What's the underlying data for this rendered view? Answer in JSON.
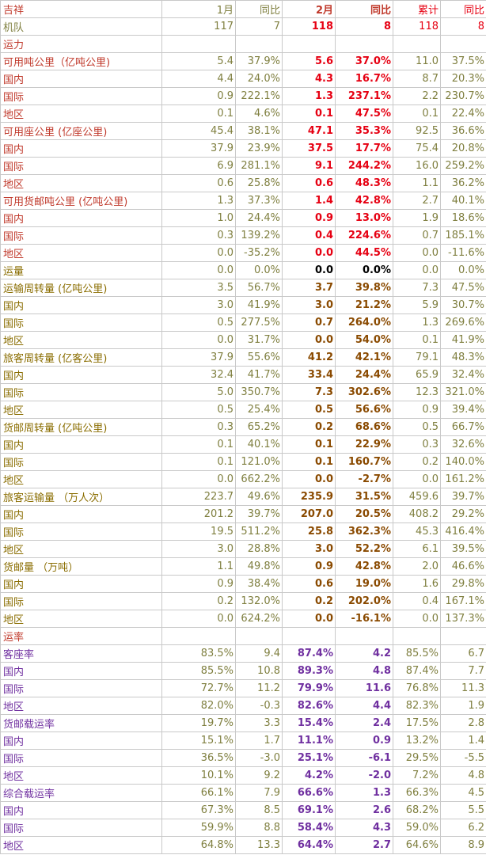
{
  "table": {
    "header": [
      "吉祥",
      "1月",
      "同比",
      "2月",
      "同比",
      "累计",
      "同比"
    ],
    "fleet": [
      "机队",
      "117",
      "7",
      "118",
      "8",
      "118",
      "8"
    ],
    "capacity_title": "运力",
    "capacity_rows": [
      [
        "可用吨公里（亿吨公里)",
        "5.4",
        "37.9%",
        "5.6",
        "37.0%",
        "11.0",
        "37.5%"
      ],
      [
        "国内",
        "4.4",
        "24.0%",
        "4.3",
        "16.7%",
        "8.7",
        "20.3%"
      ],
      [
        "国际",
        "0.9",
        "222.1%",
        "1.3",
        "237.1%",
        "2.2",
        "230.7%"
      ],
      [
        "地区",
        "0.1",
        "4.6%",
        "0.1",
        "47.5%",
        "0.1",
        "22.4%"
      ],
      [
        "可用座公里 (亿座公里)",
        "45.4",
        "38.1%",
        "47.1",
        "35.3%",
        "92.5",
        "36.6%"
      ],
      [
        "国内",
        "37.9",
        "23.9%",
        "37.5",
        "17.7%",
        "75.4",
        "20.8%"
      ],
      [
        "国际",
        "6.9",
        "281.1%",
        "9.1",
        "244.2%",
        "16.0",
        "259.2%"
      ],
      [
        "地区",
        "0.6",
        "25.8%",
        "0.6",
        "48.3%",
        "1.1",
        "36.2%"
      ],
      [
        "可用货邮吨公里 (亿吨公里)",
        "1.3",
        "37.3%",
        "1.4",
        "42.8%",
        "2.7",
        "40.1%"
      ],
      [
        "国内",
        "1.0",
        "24.4%",
        "0.9",
        "13.0%",
        "1.9",
        "18.6%"
      ],
      [
        "国际",
        "0.3",
        "139.2%",
        "0.4",
        "224.6%",
        "0.7",
        "185.1%"
      ],
      [
        "地区",
        "0.0",
        "-35.2%",
        "0.0",
        "44.5%",
        "0.0",
        "-11.6%"
      ]
    ],
    "traffic_title": [
      "运量",
      "0.0",
      "0.0%",
      "0.0",
      "0.0%",
      "0.0",
      "0.0%"
    ],
    "traffic_rows": [
      [
        "运输周转量 (亿吨公里)",
        "3.5",
        "56.7%",
        "3.7",
        "39.8%",
        "7.3",
        "47.5%"
      ],
      [
        "国内",
        "3.0",
        "41.9%",
        "3.0",
        "21.2%",
        "5.9",
        "30.7%"
      ],
      [
        "国际",
        "0.5",
        "277.5%",
        "0.7",
        "264.0%",
        "1.3",
        "269.6%"
      ],
      [
        "地区",
        "0.0",
        "31.7%",
        "0.0",
        "54.0%",
        "0.1",
        "41.9%"
      ],
      [
        "旅客周转量 (亿客公里)",
        "37.9",
        "55.6%",
        "41.2",
        "42.1%",
        "79.1",
        "48.3%"
      ],
      [
        "国内",
        "32.4",
        "41.7%",
        "33.4",
        "24.4%",
        "65.9",
        "32.4%"
      ],
      [
        "国际",
        "5.0",
        "350.7%",
        "7.3",
        "302.6%",
        "12.3",
        "321.0%"
      ],
      [
        "地区",
        "0.5",
        "25.4%",
        "0.5",
        "56.6%",
        "0.9",
        "39.4%"
      ],
      [
        "货邮周转量 (亿吨公里)",
        "0.3",
        "65.2%",
        "0.2",
        "68.6%",
        "0.5",
        "66.7%"
      ],
      [
        "国内",
        "0.1",
        "40.1%",
        "0.1",
        "22.9%",
        "0.3",
        "32.6%"
      ],
      [
        "国际",
        "0.1",
        "121.0%",
        "0.1",
        "160.7%",
        "0.2",
        "140.0%"
      ],
      [
        "地区",
        "0.0",
        "662.2%",
        "0.0",
        "-2.7%",
        "0.0",
        "161.2%"
      ],
      [
        "旅客运输量 （万人次）",
        "223.7",
        "49.6%",
        "235.9",
        "31.5%",
        "459.6",
        "39.7%"
      ],
      [
        "国内",
        "201.2",
        "39.7%",
        "207.0",
        "20.5%",
        "408.2",
        "29.2%"
      ],
      [
        "国际",
        "19.5",
        "511.2%",
        "25.8",
        "362.3%",
        "45.3",
        "416.4%"
      ],
      [
        "地区",
        "3.0",
        "28.8%",
        "3.0",
        "52.2%",
        "6.1",
        "39.5%"
      ],
      [
        "货邮量 （万吨）",
        "1.1",
        "49.8%",
        "0.9",
        "42.8%",
        "2.0",
        "46.6%"
      ],
      [
        "国内",
        "0.9",
        "38.4%",
        "0.6",
        "19.0%",
        "1.6",
        "29.8%"
      ],
      [
        "国际",
        "0.2",
        "132.0%",
        "0.2",
        "202.0%",
        "0.4",
        "167.1%"
      ],
      [
        "地区",
        "0.0",
        "624.2%",
        "0.0",
        "-16.1%",
        "0.0",
        "137.3%"
      ]
    ],
    "rates_title": "运率",
    "rate_rows": [
      [
        "客座率",
        "83.5%",
        "9.4",
        "87.4%",
        "4.2",
        "85.5%",
        "6.7"
      ],
      [
        "国内",
        "85.5%",
        "10.8",
        "89.3%",
        "4.8",
        "87.4%",
        "7.7"
      ],
      [
        "国际",
        "72.7%",
        "11.2",
        "79.9%",
        "11.6",
        "76.8%",
        "11.3"
      ],
      [
        "地区",
        "82.0%",
        "-0.3",
        "82.6%",
        "4.4",
        "82.3%",
        "1.9"
      ],
      [
        "货邮载运率",
        "19.7%",
        "3.3",
        "15.4%",
        "2.4",
        "17.5%",
        "2.8"
      ],
      [
        "国内",
        "15.1%",
        "1.7",
        "11.1%",
        "0.9",
        "13.2%",
        "1.4"
      ],
      [
        "国际",
        "36.5%",
        "-3.0",
        "25.1%",
        "-6.1",
        "29.5%",
        "-5.5"
      ],
      [
        "地区",
        "10.1%",
        "9.2",
        "4.2%",
        "-2.0",
        "7.2%",
        "4.8"
      ],
      [
        "综合载运率",
        "66.1%",
        "7.9",
        "66.6%",
        "1.3",
        "66.3%",
        "4.5"
      ],
      [
        "国内",
        "67.3%",
        "8.5",
        "69.1%",
        "2.6",
        "68.2%",
        "5.5"
      ],
      [
        "国际",
        "59.9%",
        "8.8",
        "58.4%",
        "4.3",
        "59.0%",
        "6.2"
      ],
      [
        "地区",
        "64.8%",
        "13.3",
        "64.4%",
        "2.7",
        "64.6%",
        "8.9"
      ]
    ]
  }
}
